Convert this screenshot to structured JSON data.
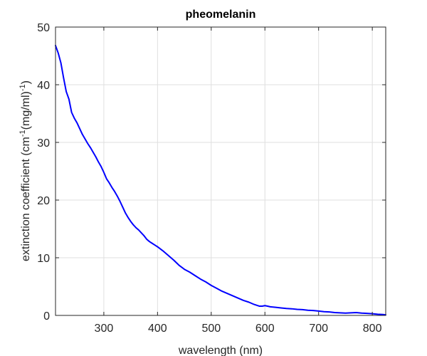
{
  "chart_data": {
    "type": "line",
    "title": "pheomelanin",
    "xlabel": "wavelength (nm)",
    "ylabel": {
      "base": "extinction coefficient (cm",
      "sup1": "-1",
      "mid": "(mg/ml)",
      "sup2": "-1",
      "end": ")"
    },
    "xlim": [
      210,
      825
    ],
    "ylim": [
      0,
      50
    ],
    "xticks": [
      300,
      400,
      500,
      600,
      700,
      800
    ],
    "yticks": [
      0,
      10,
      20,
      30,
      40,
      50
    ],
    "grid": true,
    "colors": {
      "line": "#0000ff",
      "grid": "#dfdfdf",
      "axis": "#262626"
    },
    "series": [
      {
        "x": [
          210,
          215,
          220,
          225,
          230,
          235,
          240,
          245,
          250,
          255,
          260,
          265,
          270,
          275,
          280,
          285,
          290,
          295,
          300,
          305,
          310,
          315,
          320,
          325,
          330,
          335,
          340,
          345,
          350,
          355,
          360,
          365,
          370,
          375,
          380,
          385,
          390,
          395,
          400,
          410,
          420,
          430,
          440,
          450,
          460,
          470,
          480,
          490,
          500,
          510,
          520,
          530,
          540,
          550,
          560,
          570,
          580,
          590,
          595,
          600,
          605,
          610,
          620,
          630,
          640,
          650,
          660,
          670,
          680,
          690,
          700,
          710,
          720,
          730,
          740,
          750,
          760,
          770,
          780,
          790,
          800,
          810,
          820,
          825
        ],
        "y": [
          46.8,
          45.5,
          43.8,
          41.2,
          38.8,
          37.5,
          35.2,
          34.2,
          33.4,
          32.4,
          31.4,
          30.6,
          29.8,
          29.1,
          28.3,
          27.5,
          26.6,
          25.8,
          24.8,
          23.7,
          23.0,
          22.2,
          21.5,
          20.7,
          19.8,
          18.8,
          17.8,
          17.0,
          16.3,
          15.7,
          15.2,
          14.8,
          14.3,
          13.8,
          13.2,
          12.8,
          12.5,
          12.2,
          11.9,
          11.2,
          10.4,
          9.6,
          8.7,
          8.0,
          7.5,
          6.9,
          6.3,
          5.8,
          5.2,
          4.7,
          4.2,
          3.8,
          3.4,
          3.0,
          2.6,
          2.3,
          1.9,
          1.6,
          1.6,
          1.7,
          1.6,
          1.5,
          1.4,
          1.3,
          1.2,
          1.15,
          1.05,
          1.0,
          0.9,
          0.85,
          0.75,
          0.65,
          0.6,
          0.5,
          0.45,
          0.4,
          0.45,
          0.5,
          0.4,
          0.35,
          0.3,
          0.2,
          0.15,
          0.1
        ]
      }
    ]
  }
}
